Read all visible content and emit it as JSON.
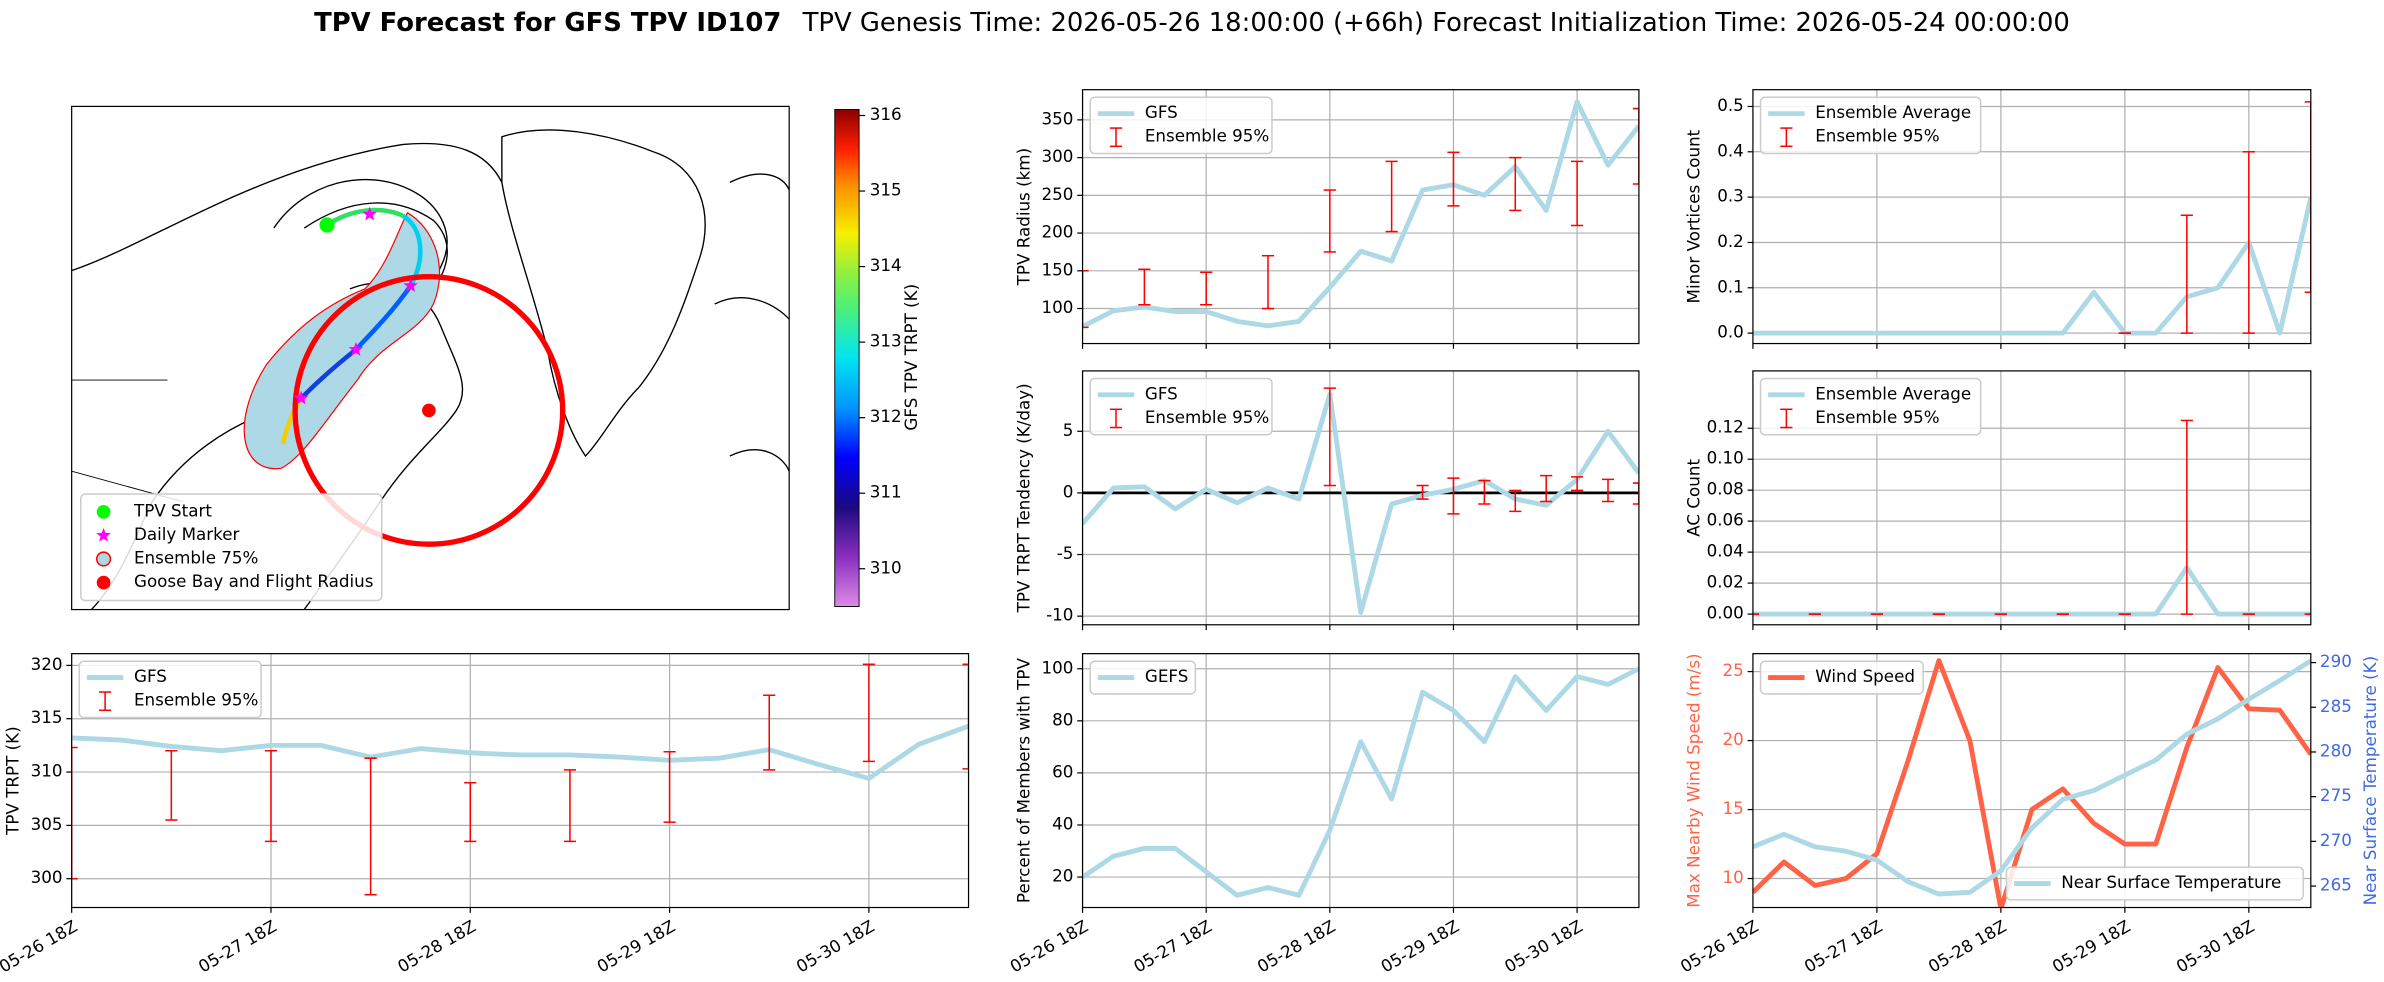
{
  "title": "TPV Forecast for GFS TPV ID107",
  "subtitle": "TPV Genesis Time: 2026-05-26 18:00:00 (+66h)   Forecast Initialization Time: 2026-05-24 00:00:00",
  "chart_data": [
    {
      "type": "map",
      "colorbar_label": "GFS TPV TRPT (K)",
      "clim": [
        309.5,
        316.08
      ],
      "cticks": [
        310,
        311,
        312,
        313,
        314,
        315,
        316
      ],
      "legend": "lower left",
      "series": [
        {
          "name": "TPV Start",
          "color": "#00ff00"
        },
        {
          "name": "Daily Marker",
          "color": "#ff00ff"
        },
        {
          "name": "Ensemble 75%",
          "color": "#add8e6"
        },
        {
          "name": "Goose Bay and Flight Radius",
          "color": "#ff0000"
        }
      ]
    },
    {
      "type": "line",
      "ylabel": "TPV TRPT (K)",
      "grid": true,
      "legend": "upper left",
      "show_xticklabels": true,
      "x": [
        "05-26 18Z",
        "05-27 00Z",
        "05-27 06Z",
        "05-27 12Z",
        "05-27 18Z",
        "05-28 00Z",
        "05-28 06Z",
        "05-28 12Z",
        "05-28 18Z",
        "05-29 00Z",
        "05-29 06Z",
        "05-29 12Z",
        "05-29 18Z",
        "05-30 00Z",
        "05-30 06Z",
        "05-30 12Z",
        "05-30 18Z",
        "05-31 00Z",
        "05-31 06Z"
      ],
      "xticks": [
        "05-26 18Z",
        "05-27 18Z",
        "05-28 18Z",
        "05-29 18Z",
        "05-30 18Z"
      ],
      "ylim": [
        297.3,
        321.1
      ],
      "yticks": [
        300,
        305,
        310,
        315,
        320
      ],
      "series": [
        {
          "name": "GFS",
          "color": "#add8e6",
          "values": [
            313.2,
            313.0,
            312.4,
            312.0,
            312.5,
            312.5,
            311.4,
            312.2,
            311.8,
            311.6,
            311.6,
            311.4,
            311.1,
            311.3,
            312.1,
            310.7,
            309.4,
            312.6,
            314.3
          ]
        }
      ],
      "errorbars": {
        "name": "Ensemble 95%",
        "color": "#ff0000",
        "low": [
          300.0,
          null,
          305.5,
          null,
          303.5,
          null,
          298.5,
          null,
          303.5,
          null,
          303.5,
          null,
          305.3,
          null,
          310.2,
          null,
          311.0,
          null,
          310.3
        ],
        "high": [
          312.3,
          null,
          312.0,
          null,
          312.0,
          null,
          311.3,
          null,
          309.0,
          null,
          310.2,
          null,
          311.9,
          null,
          317.2,
          null,
          320.1,
          null,
          320.1
        ]
      }
    },
    {
      "type": "line",
      "ylabel": "TPV Radius (km)",
      "grid": true,
      "legend": "upper left",
      "show_xticklabels": false,
      "x": [
        "05-26 18Z",
        "05-27 00Z",
        "05-27 06Z",
        "05-27 12Z",
        "05-27 18Z",
        "05-28 00Z",
        "05-28 06Z",
        "05-28 12Z",
        "05-28 18Z",
        "05-29 00Z",
        "05-29 06Z",
        "05-29 12Z",
        "05-29 18Z",
        "05-30 00Z",
        "05-30 06Z",
        "05-30 12Z",
        "05-30 18Z",
        "05-31 00Z",
        "05-31 06Z"
      ],
      "xticks": [
        "05-26 18Z",
        "05-27 18Z",
        "05-28 18Z",
        "05-29 18Z",
        "05-30 18Z"
      ],
      "ylim": [
        53.6,
        390
      ],
      "yticks": [
        100,
        150,
        200,
        250,
        300,
        350
      ],
      "series": [
        {
          "name": "GFS",
          "color": "#add8e6",
          "values": [
            76,
            97,
            102,
            96,
            96,
            83,
            77,
            83,
            128,
            176,
            163,
            257,
            264,
            250,
            288,
            230,
            374,
            290,
            342
          ]
        }
      ],
      "errorbars": {
        "name": "Ensemble 95%",
        "color": "#ff0000",
        "low": [
          75,
          null,
          105,
          null,
          105,
          null,
          100,
          null,
          175,
          null,
          202,
          null,
          236,
          null,
          230,
          null,
          210,
          null,
          265
        ],
        "high": [
          150,
          null,
          152,
          null,
          148,
          null,
          170,
          null,
          257,
          null,
          295,
          null,
          307,
          null,
          300,
          null,
          295,
          null,
          365
        ]
      }
    },
    {
      "type": "line",
      "ylabel": "TPV TRPT Tendency (K/day)",
      "grid": true,
      "legend": "upper left",
      "show_xticklabels": false,
      "hline": 0,
      "hline_color": "#000000",
      "x": [
        "05-26 18Z",
        "05-27 00Z",
        "05-27 06Z",
        "05-27 12Z",
        "05-27 18Z",
        "05-28 00Z",
        "05-28 06Z",
        "05-28 12Z",
        "05-28 18Z",
        "05-29 00Z",
        "05-29 06Z",
        "05-29 12Z",
        "05-29 18Z",
        "05-30 00Z",
        "05-30 06Z",
        "05-30 12Z",
        "05-30 18Z",
        "05-31 00Z",
        "05-31 06Z"
      ],
      "xticks": [
        "05-26 18Z",
        "05-27 18Z",
        "05-28 18Z",
        "05-29 18Z",
        "05-30 18Z"
      ],
      "ylim": [
        -10.7,
        9.9
      ],
      "yticks": [
        -10,
        -5,
        0,
        5
      ],
      "series": [
        {
          "name": "GFS",
          "color": "#add8e6",
          "values": [
            -2.5,
            0.4,
            0.5,
            -1.3,
            0.3,
            -0.8,
            0.4,
            -0.5,
            8.0,
            -9.7,
            -0.9,
            -0.2,
            0.3,
            1.0,
            -0.5,
            -1.0,
            1.1,
            5.0,
            1.6
          ]
        }
      ],
      "errorbars": {
        "name": "Ensemble 95%",
        "color": "#ff0000",
        "low": [
          null,
          null,
          null,
          null,
          null,
          null,
          null,
          null,
          0.6,
          null,
          null,
          -0.5,
          -1.7,
          -0.9,
          -1.5,
          -0.7,
          0.2,
          -0.7,
          -0.9
        ],
        "high": [
          null,
          null,
          null,
          null,
          null,
          null,
          null,
          null,
          8.5,
          null,
          null,
          0.6,
          1.2,
          1.0,
          0.2,
          1.4,
          1.3,
          1.1,
          0.8
        ]
      }
    },
    {
      "type": "line",
      "ylabel": "Percent of Members with TPV",
      "grid": true,
      "legend": "upper left",
      "show_xticklabels": true,
      "x": [
        "05-26 18Z",
        "05-27 00Z",
        "05-27 06Z",
        "05-27 12Z",
        "05-27 18Z",
        "05-28 00Z",
        "05-28 06Z",
        "05-28 12Z",
        "05-28 18Z",
        "05-29 00Z",
        "05-29 06Z",
        "05-29 12Z",
        "05-29 18Z",
        "05-30 00Z",
        "05-30 06Z",
        "05-30 12Z",
        "05-30 18Z",
        "05-31 00Z",
        "05-31 06Z"
      ],
      "xticks": [
        "05-26 18Z",
        "05-27 18Z",
        "05-28 18Z",
        "05-29 18Z",
        "05-30 18Z"
      ],
      "ylim": [
        8.3,
        105.8
      ],
      "yticks": [
        20,
        40,
        60,
        80,
        100
      ],
      "series": [
        {
          "name": "GEFS",
          "color": "#add8e6",
          "values": [
            20,
            28,
            31,
            31,
            22,
            13,
            16,
            13,
            38,
            72,
            50,
            91,
            84,
            72,
            97,
            84,
            97,
            94,
            100
          ]
        }
      ]
    },
    {
      "type": "line",
      "ylabel": "Minor Vortices Count",
      "grid": true,
      "legend": "upper left",
      "show_xticklabels": false,
      "x": [
        "05-26 18Z",
        "05-27 00Z",
        "05-27 06Z",
        "05-27 12Z",
        "05-27 18Z",
        "05-28 00Z",
        "05-28 06Z",
        "05-28 12Z",
        "05-28 18Z",
        "05-29 00Z",
        "05-29 06Z",
        "05-29 12Z",
        "05-29 18Z",
        "05-30 00Z",
        "05-30 06Z",
        "05-30 12Z",
        "05-30 18Z",
        "05-31 00Z",
        "05-31 06Z"
      ],
      "xticks": [
        "05-26 18Z",
        "05-27 18Z",
        "05-28 18Z",
        "05-29 18Z",
        "05-30 18Z"
      ],
      "ylim": [
        -0.023,
        0.537
      ],
      "yticks": [
        {
          "value": 0,
          "label": "0.0"
        },
        0.1,
        0.2,
        0.3,
        0.4,
        0.5
      ],
      "series": [
        {
          "name": "Ensemble Average",
          "color": "#add8e6",
          "values": [
            0,
            0,
            0,
            0,
            0,
            0,
            0,
            0,
            0,
            0,
            0,
            0.09,
            0,
            0,
            0.08,
            0.1,
            0.2,
            0,
            0.3
          ]
        }
      ],
      "errorbars": {
        "name": "Ensemble 95%",
        "color": "#ff0000",
        "low": [
          null,
          null,
          null,
          null,
          null,
          null,
          null,
          null,
          null,
          null,
          null,
          null,
          0,
          null,
          0,
          null,
          0,
          null,
          0.09
        ],
        "high": [
          null,
          null,
          null,
          null,
          null,
          null,
          null,
          null,
          null,
          null,
          null,
          null,
          0,
          null,
          0.26,
          null,
          0.4,
          null,
          0.51
        ]
      }
    },
    {
      "type": "line",
      "ylabel": "AC Count",
      "grid": true,
      "legend": "upper left",
      "show_xticklabels": false,
      "x": [
        "05-26 18Z",
        "05-27 00Z",
        "05-27 06Z",
        "05-27 12Z",
        "05-27 18Z",
        "05-28 00Z",
        "05-28 06Z",
        "05-28 12Z",
        "05-28 18Z",
        "05-29 00Z",
        "05-29 06Z",
        "05-29 12Z",
        "05-29 18Z",
        "05-30 00Z",
        "05-30 06Z",
        "05-30 12Z",
        "05-30 18Z",
        "05-31 00Z",
        "05-31 06Z"
      ],
      "xticks": [
        "05-26 18Z",
        "05-27 18Z",
        "05-28 18Z",
        "05-29 18Z",
        "05-30 18Z"
      ],
      "ylim": [
        -0.0069,
        0.157
      ],
      "yticks": [
        {
          "value": 0,
          "label": "0.00"
        },
        {
          "value": 0.02,
          "label": "0.02"
        },
        {
          "value": 0.04,
          "label": "0.04"
        },
        {
          "value": 0.06,
          "label": "0.06"
        },
        {
          "value": 0.08,
          "label": "0.08"
        },
        {
          "value": 0.1,
          "label": "0.10"
        },
        {
          "value": 0.12,
          "label": "0.12"
        }
      ],
      "series": [
        {
          "name": "Ensemble Average",
          "color": "#add8e6",
          "values": [
            0,
            0,
            0,
            0,
            0,
            0,
            0,
            0,
            0,
            0,
            0,
            0,
            0,
            0,
            0.03,
            0,
            0,
            0,
            0
          ]
        }
      ],
      "errorbars": {
        "name": "Ensemble 95%",
        "color": "#ff0000",
        "low": [
          0,
          null,
          0,
          null,
          0,
          null,
          0,
          null,
          0,
          null,
          0,
          null,
          0,
          null,
          0,
          null,
          0,
          null,
          0
        ],
        "high": [
          0,
          null,
          0,
          null,
          0,
          null,
          0,
          null,
          0,
          null,
          0,
          null,
          0,
          null,
          0.125,
          null,
          0,
          null,
          0
        ]
      }
    },
    {
      "type": "line",
      "ylabel": "Max Nearby Wind Speed (m/s)",
      "ylabel_color": "#ff6347",
      "y2label": "Near Surface Temperature (K)",
      "y2label_color": "#4169e1",
      "grid": true,
      "legend": "upper left",
      "legend2": "lower right",
      "show_xticklabels": true,
      "x": [
        "05-26 18Z",
        "05-27 00Z",
        "05-27 06Z",
        "05-27 12Z",
        "05-27 18Z",
        "05-28 00Z",
        "05-28 06Z",
        "05-28 12Z",
        "05-28 18Z",
        "05-29 00Z",
        "05-29 06Z",
        "05-29 12Z",
        "05-29 18Z",
        "05-30 00Z",
        "05-30 06Z",
        "05-30 12Z",
        "05-30 18Z",
        "05-31 00Z",
        "05-31 06Z"
      ],
      "xticks": [
        "05-26 18Z",
        "05-27 18Z",
        "05-28 18Z",
        "05-29 18Z",
        "05-30 18Z"
      ],
      "ylim": [
        7.9,
        26.3
      ],
      "yticks": [
        10,
        15,
        20,
        25
      ],
      "y2lim": [
        262.6,
        291.0
      ],
      "y2ticks": [
        265,
        270,
        275,
        280,
        285,
        290
      ],
      "series": [
        {
          "name": "Wind Speed",
          "color": "#ff6347",
          "values": [
            9.0,
            11.2,
            9.5,
            10.0,
            11.8,
            18.5,
            25.8,
            20.0,
            7.8,
            15.0,
            16.5,
            14.0,
            12.5,
            12.5,
            19.5,
            25.3,
            22.3,
            22.2,
            19.0
          ]
        },
        {
          "name": "Near Surface Temperature",
          "color": "#add8e6",
          "axis": "y2",
          "values": [
            269.4,
            270.8,
            269.4,
            268.9,
            267.9,
            265.5,
            264.1,
            264.3,
            266.7,
            271.5,
            274.7,
            275.7,
            277.4,
            279.1,
            282.0,
            283.7,
            285.9,
            288.0,
            290.2
          ]
        }
      ]
    }
  ]
}
